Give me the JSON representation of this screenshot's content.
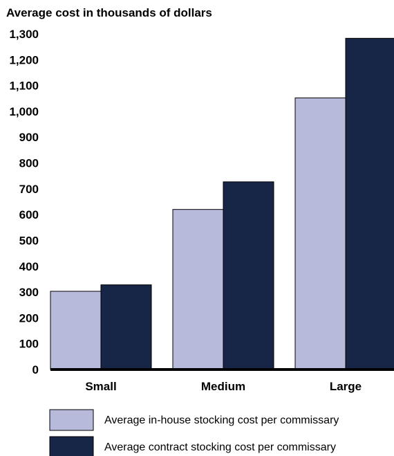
{
  "chart_data": {
    "type": "bar",
    "title": "Average cost in thousands of dollars",
    "xlabel": "",
    "ylabel": "",
    "categories": [
      "Small",
      "Medium",
      "Large"
    ],
    "ylim": [
      0,
      1300
    ],
    "yticks": [
      "0",
      "100",
      "200",
      "300",
      "400",
      "500",
      "600",
      "700",
      "800",
      "900",
      "1,000",
      "1,100",
      "1,200",
      "1,300"
    ],
    "ytick_values": [
      0,
      100,
      200,
      300,
      400,
      500,
      600,
      700,
      800,
      900,
      1000,
      1100,
      1200,
      1300
    ],
    "grid": false,
    "legend_position": "bottom",
    "series": [
      {
        "name": "Average in-house stocking cost per commissary",
        "color": "#b8badb",
        "values": [
          303,
          620,
          1052
        ]
      },
      {
        "name": "Average contract stocking cost per commissary",
        "color": "#172547",
        "values": [
          328,
          727,
          1283
        ]
      }
    ]
  }
}
